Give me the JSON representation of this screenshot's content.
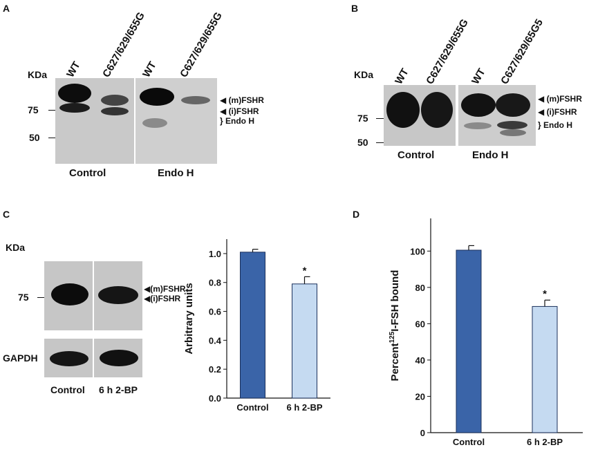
{
  "panels": {
    "a": {
      "letter": "A",
      "kda": "KDa",
      "lanes": [
        "WT",
        "C627/629/655G",
        "WT",
        "C627/629/655G"
      ],
      "markers": [
        "75",
        "50"
      ],
      "side_labels": [
        "(m)FSHR",
        "(i)FSHR",
        "Endo H"
      ],
      "groups": [
        "Control",
        "Endo H"
      ]
    },
    "b": {
      "letter": "B",
      "kda": "KDa",
      "lanes": [
        "WT",
        "C627/629/655G",
        "WT",
        "C627/629/65G5"
      ],
      "markers": [
        "75",
        "50"
      ],
      "side_labels": [
        "(m)FSHR",
        "(i)FSHR",
        "Endo H"
      ],
      "groups": [
        "Control",
        "Endo H"
      ]
    },
    "c": {
      "letter": "C",
      "kda": "KDa",
      "marker": "75",
      "side_labels": [
        "(m)FSHR",
        "(i)FSHR"
      ],
      "loading_control": "GAPDH",
      "groups": [
        "Control",
        "6 h 2-BP"
      ]
    },
    "d": {
      "letter": "D"
    }
  },
  "chart_data": [
    {
      "panel": "C",
      "type": "bar",
      "categories": [
        "Control",
        "6 h 2-BP"
      ],
      "values": [
        1.01,
        0.79
      ],
      "errors": [
        0.02,
        0.05
      ],
      "colors": [
        "#3a64a8",
        "#c5daf1"
      ],
      "significance": [
        "",
        "*"
      ],
      "ylabel": "Arbitrary units",
      "ylim": [
        0,
        1.1
      ],
      "yticks": [
        "0.0",
        "0.2",
        "0.4",
        "0.6",
        "0.8",
        "1.0"
      ]
    },
    {
      "panel": "D",
      "type": "bar",
      "categories": [
        "Control",
        "6 h 2-BP"
      ],
      "values": [
        100.5,
        69.5
      ],
      "errors": [
        2.5,
        3.5
      ],
      "colors": [
        "#3a64a8",
        "#c5daf1"
      ],
      "significance": [
        "",
        "*"
      ],
      "ylabel_pre": "Percent",
      "ylabel_sup": "125",
      "ylabel_post": "I-FSH bound",
      "ylim": [
        0,
        118
      ],
      "yticks": [
        "0",
        "20",
        "40",
        "60",
        "80",
        "100"
      ]
    }
  ]
}
